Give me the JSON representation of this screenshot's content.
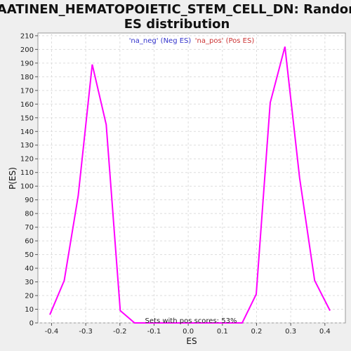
{
  "chart_data": {
    "type": "line",
    "title_line1": "JAATINEN_HEMATOPOIETIC_STEM_CELL_DN: Random",
    "title_line2": "ES distribution",
    "xlabel": "ES",
    "ylabel": "P(ES)",
    "xlim": [
      -0.44,
      0.46
    ],
    "ylim": [
      0,
      212
    ],
    "xticks": [
      -0.4,
      -0.3,
      -0.2,
      -0.1,
      0.0,
      0.1,
      0.2,
      0.3,
      0.4
    ],
    "xtick_labels": [
      "-0.4",
      "-0.3",
      "-0.2",
      "-0.1",
      "0.0",
      "0.1",
      "0.2",
      "0.3",
      "0.4"
    ],
    "yticks": [
      0,
      10,
      20,
      30,
      40,
      50,
      60,
      70,
      80,
      90,
      100,
      110,
      120,
      130,
      140,
      150,
      160,
      170,
      180,
      190,
      200,
      210
    ],
    "grid": true,
    "legend": [
      {
        "label": "'na_neg' (Neg ES)",
        "color": "#3333cc"
      },
      {
        "label": "'na_pos' (Pos ES)",
        "color": "#cc3333"
      }
    ],
    "annotation": "Sets with pos scores: 53%",
    "series": [
      {
        "color": "#ff00ff",
        "x": [
          -0.405,
          -0.363,
          -0.322,
          -0.281,
          -0.24,
          -0.199,
          -0.157,
          -0.116,
          -0.075,
          -0.034,
          0.007,
          0.048,
          0.09,
          0.131,
          0.158,
          0.199,
          0.24,
          0.283,
          0.326,
          0.37,
          0.415
        ],
        "y": [
          6,
          31,
          93,
          189,
          145,
          9,
          0,
          0,
          0,
          0,
          0,
          0,
          0,
          0,
          0,
          21,
          161,
          202,
          106,
          31,
          9
        ]
      }
    ]
  }
}
